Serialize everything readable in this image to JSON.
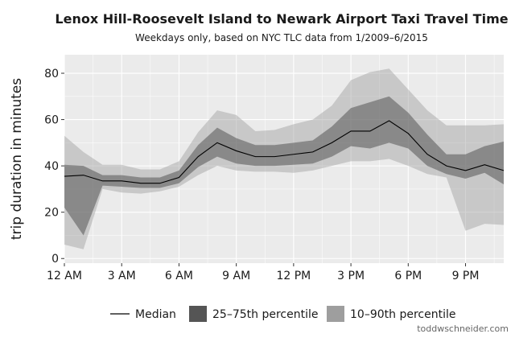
{
  "chart_data": {
    "type": "area",
    "title": "Lenox Hill-Roosevelt Island to Newark Airport Taxi Travel Time",
    "subtitle": "Weekdays only, based on NYC TLC data from 1/2009–6/2015",
    "xlabel": "",
    "ylabel": "trip duration in minutes",
    "xlim": [
      0,
      23
    ],
    "ylim": [
      -2,
      88
    ],
    "x_ticks": [
      0,
      3,
      6,
      9,
      12,
      15,
      18,
      21
    ],
    "x_tick_labels": [
      "12 AM",
      "3 AM",
      "6 AM",
      "9 AM",
      "12 PM",
      "3 PM",
      "6 PM",
      "9 PM"
    ],
    "y_ticks": [
      0,
      20,
      40,
      60,
      80
    ],
    "grid": true,
    "legend_position": "bottom",
    "x": [
      0,
      1,
      2,
      3,
      4,
      5,
      6,
      7,
      8,
      9,
      10,
      11,
      12,
      13,
      14,
      15,
      16,
      17,
      18,
      19,
      20,
      21,
      22,
      23
    ],
    "series": [
      {
        "name": "Median",
        "kind": "line",
        "color": "#000000",
        "values": [
          35.5,
          36,
          33.5,
          33.5,
          32.5,
          32.5,
          35,
          44,
          50,
          46.5,
          44,
          44,
          45,
          46,
          50,
          55,
          55,
          59.5,
          54,
          45,
          40,
          38,
          40.5,
          38
        ]
      },
      {
        "name": "25–75th percentile",
        "kind": "band",
        "color": "#555555",
        "lower": [
          22,
          10,
          31.5,
          31,
          30.5,
          30.5,
          32.5,
          39.5,
          44,
          41,
          40,
          40,
          40.5,
          41,
          44,
          48.5,
          47.5,
          50,
          47.5,
          40,
          36.5,
          34.5,
          37,
          32
        ],
        "upper": [
          40.5,
          40,
          36,
          36,
          35,
          35,
          38,
          49,
          56.5,
          52,
          49,
          49,
          50,
          51,
          57,
          65,
          67.5,
          70,
          63,
          53.5,
          45,
          45,
          48.5,
          50.5
        ]
      },
      {
        "name": "10–90th percentile",
        "kind": "band",
        "color": "#9e9e9e",
        "lower": [
          6,
          4,
          30,
          28.5,
          28,
          29,
          31,
          36,
          40,
          38,
          37.5,
          37.5,
          37,
          38,
          40,
          42,
          42,
          43,
          40,
          36.5,
          35,
          12,
          15,
          14.5
        ],
        "upper": [
          53,
          46,
          40.5,
          40.5,
          38.5,
          38.5,
          42,
          54.5,
          64,
          62,
          55,
          55.5,
          58,
          60,
          66,
          77,
          80.5,
          82,
          73,
          64,
          57.5,
          57.5,
          57.5,
          58
        ]
      }
    ]
  },
  "credit": "toddwschneider.com",
  "colors": {
    "panel": "#ebebeb",
    "grid": "#ffffff"
  }
}
